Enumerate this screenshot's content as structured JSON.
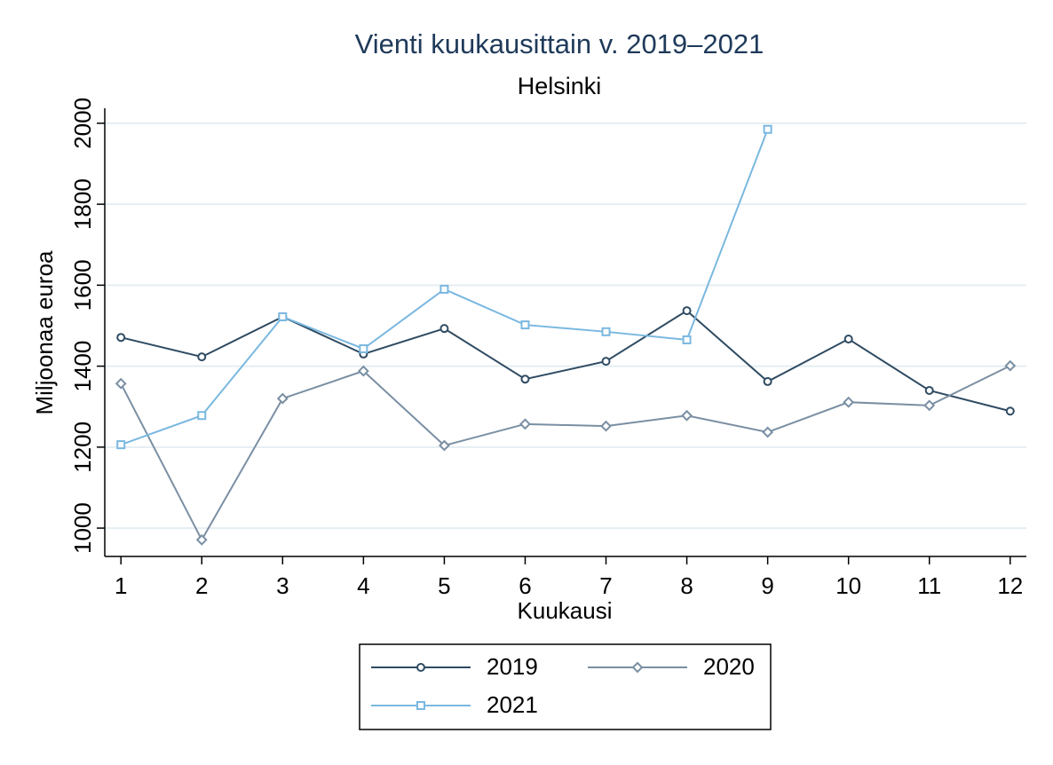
{
  "chart_data": {
    "type": "line",
    "title": "Vienti kuukausittain v. 2019–2021",
    "subtitle": "Helsinki",
    "x_label": "Kuukausi",
    "y_label": "Miljoonaa euroa",
    "x": [
      1,
      2,
      3,
      4,
      5,
      6,
      7,
      8,
      9,
      10,
      11,
      12
    ],
    "xlim": [
      0.8,
      12.2
    ],
    "xticks": [
      1,
      2,
      3,
      4,
      5,
      6,
      7,
      8,
      9,
      10,
      11,
      12
    ],
    "ylim": [
      930,
      2037
    ],
    "yticks": [
      1000,
      1200,
      1400,
      1600,
      1800,
      2000
    ],
    "grid": true,
    "legend": "bottom",
    "series": [
      {
        "name": "2019",
        "color": "#2f4b62",
        "marker": "circle",
        "values": [
          1471,
          1423,
          1522,
          1430,
          1493,
          1368,
          1412,
          1537,
          1362,
          1467,
          1340,
          1289
        ]
      },
      {
        "name": "2020",
        "color": "#7a8fa3",
        "marker": "diamond",
        "values": [
          1357,
          971,
          1320,
          1388,
          1204,
          1257,
          1252,
          1278,
          1237,
          1311,
          1303,
          1401
        ]
      },
      {
        "name": "2021",
        "color": "#7ab8e0",
        "marker": "square",
        "values": [
          1206,
          1278,
          1522,
          1443,
          1590,
          1502,
          1485,
          1465,
          1985,
          null,
          null,
          null
        ]
      }
    ]
  }
}
